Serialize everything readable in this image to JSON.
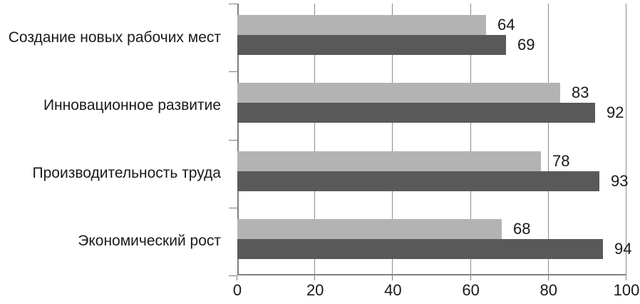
{
  "chart_data": {
    "type": "bar",
    "orientation": "horizontal",
    "title": "",
    "categories": [
      "Создание новых рабочих мест",
      "Инновационное развитие",
      "Производительность труда",
      "Экономический рост"
    ],
    "series": [
      {
        "name": "light-gray-series",
        "color": "#b3b3b3",
        "values": [
          64,
          83,
          78,
          68
        ]
      },
      {
        "name": "dark-gray-series",
        "color": "#595959",
        "values": [
          69,
          92,
          93,
          94
        ]
      }
    ],
    "x_ticks": [
      0,
      20,
      40,
      60,
      80,
      100
    ],
    "xlim": [
      0,
      100
    ],
    "grid": "vertical",
    "legend": "none",
    "data_labels": true
  },
  "colors": {
    "background": "#ffffff",
    "axis": "#7f7f7f",
    "gridline": "#8c8c8c",
    "text": "#1a1a1a",
    "series_light": "#b3b3b3",
    "series_dark": "#595959"
  }
}
